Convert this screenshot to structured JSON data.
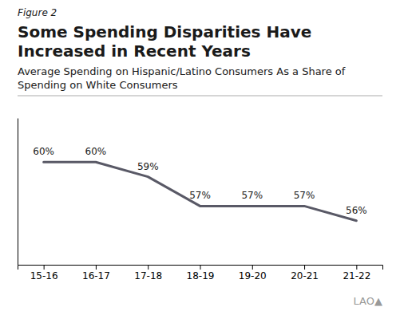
{
  "chart_data": {
    "type": "line",
    "title": "Some Spending Disparities Have Increased in Recent Years",
    "subtitle": "Average Spending on Hispanic/Latino Consumers As a Share of Spending on White Consumers",
    "annotations": [
      "Figure 2",
      "LAO▲"
    ],
    "categories": [
      "15-16",
      "16-17",
      "17-18",
      "18-19",
      "19-20",
      "20-21",
      "21-22"
    ],
    "values": [
      60,
      60,
      59,
      57,
      57,
      57,
      56
    ],
    "value_labels": [
      "60%",
      "60%",
      "59%",
      "57%",
      "57%",
      "57%",
      "56%"
    ],
    "data_labels": true,
    "color": "#595966",
    "ylim": [
      53,
      63
    ],
    "tick_labels": "x"
  }
}
